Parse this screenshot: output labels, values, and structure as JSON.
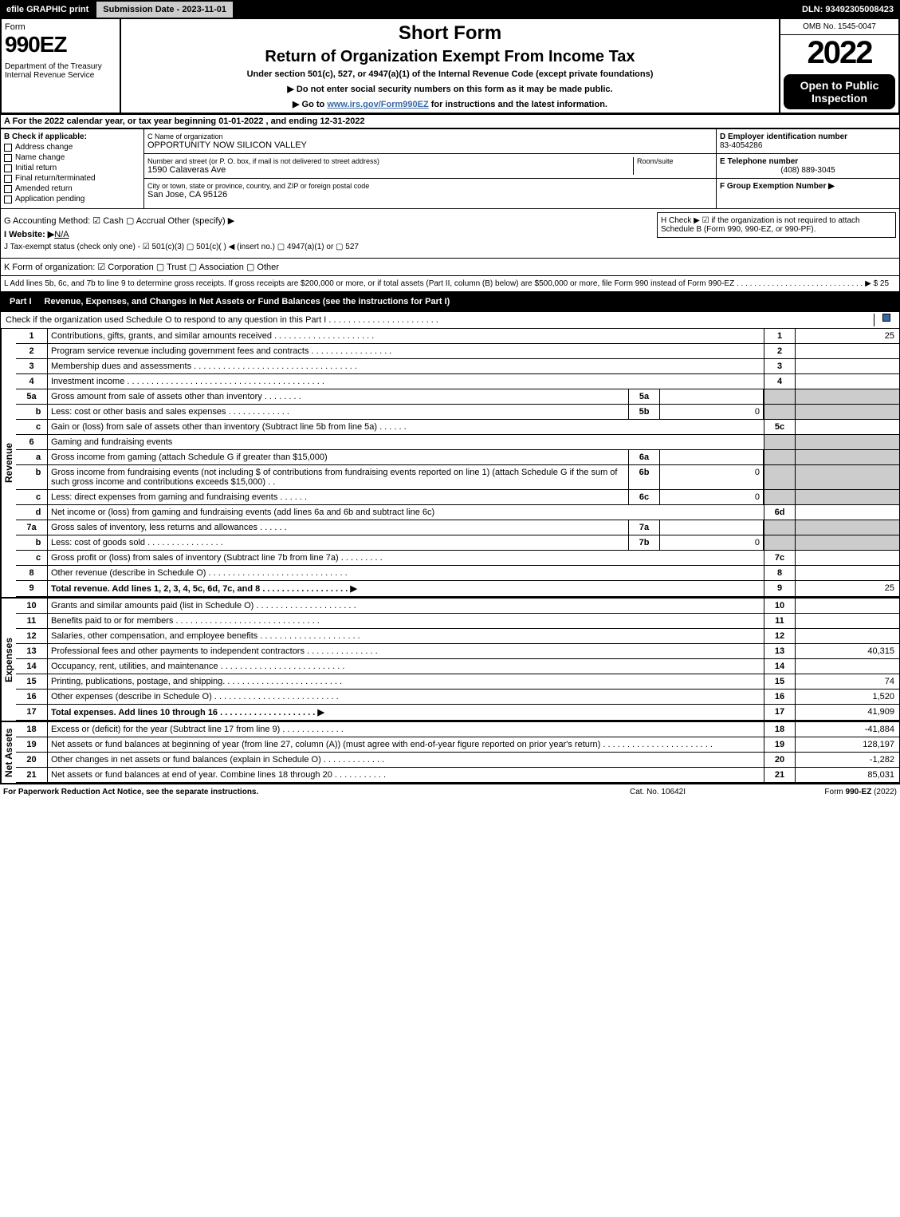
{
  "topbar": {
    "efile": "efile GRAPHIC print",
    "subdate": "Submission Date - 2023-11-01",
    "dln": "DLN: 93492305008423"
  },
  "header": {
    "form_label": "Form",
    "form_num": "990EZ",
    "dept": "Department of the Treasury\nInternal Revenue Service",
    "short_form": "Short Form",
    "return_title": "Return of Organization Exempt From Income Tax",
    "under": "Under section 501(c), 527, or 4947(a)(1) of the Internal Revenue Code (except private foundations)",
    "inst1": "▶ Do not enter social security numbers on this form as it may be made public.",
    "inst2_a": "▶ Go to ",
    "inst2_link": "www.irs.gov/Form990EZ",
    "inst2_b": " for instructions and the latest information.",
    "omb": "OMB No. 1545-0047",
    "year": "2022",
    "open": "Open to Public Inspection"
  },
  "section_a": "A  For the 2022 calendar year, or tax year beginning 01-01-2022  , and ending 12-31-2022",
  "col_b": {
    "hdr": "B  Check if applicable:",
    "items": [
      "Address change",
      "Name change",
      "Initial return",
      "Final return/terminated",
      "Amended return",
      "Application pending"
    ]
  },
  "col_c": {
    "name_lbl": "C Name of organization",
    "name": "OPPORTUNITY NOW SILICON VALLEY",
    "addr_lbl": "Number and street (or P. O. box, if mail is not delivered to street address)",
    "addr": "1590 Calaveras Ave",
    "room_lbl": "Room/suite",
    "city_lbl": "City or town, state or province, country, and ZIP or foreign postal code",
    "city": "San Jose, CA  95126"
  },
  "col_d": {
    "ein_lbl": "D Employer identification number",
    "ein": "83-4054286",
    "tel_lbl": "E Telephone number",
    "tel": "(408) 889-3045",
    "grp_lbl": "F Group Exemption Number  ▶"
  },
  "lower": {
    "g": "G Accounting Method:   ☑ Cash   ▢ Accrual   Other (specify) ▶",
    "i": "I Website: ▶",
    "i_val": "N/A",
    "j": "J Tax-exempt status (check only one) -  ☑ 501(c)(3)  ▢ 501(c)(  ) ◀ (insert no.)  ▢ 4947(a)(1) or  ▢ 527",
    "h": "H  Check ▶ ☑ if the organization is not required to attach Schedule B (Form 990, 990-EZ, or 990-PF)."
  },
  "section_k": "K Form of organization:   ☑ Corporation   ▢ Trust   ▢ Association   ▢ Other",
  "section_l": "L Add lines 5b, 6c, and 7b to line 9 to determine gross receipts. If gross receipts are $200,000 or more, or if total assets (Part II, column (B) below) are $500,000 or more, file Form 990 instead of Form 990-EZ  . . . . . . . . . . . . . . . . . . . . . . . . . . . . .  ▶ $ 25",
  "part1": {
    "title": "Revenue, Expenses, and Changes in Net Assets or Fund Balances (see the instructions for Part I)",
    "check_o": "Check if the organization used Schedule O to respond to any question in this Part I . . . . . . . . . . . . . . . . . . . . . . .",
    "revenue_label": "Revenue",
    "expenses_label": "Expenses",
    "netassets_label": "Net Assets",
    "rows": [
      {
        "n": "1",
        "desc": "Contributions, gifts, grants, and similar amounts received . . . . . . . . . . . . . . . . . . . . .",
        "rn": "1",
        "rv": "25"
      },
      {
        "n": "2",
        "desc": "Program service revenue including government fees and contracts . . . . . . . . . . . . . . . . .",
        "rn": "2",
        "rv": ""
      },
      {
        "n": "3",
        "desc": "Membership dues and assessments . . . . . . . . . . . . . . . . . . . . . . . . . . . . . . . . . .",
        "rn": "3",
        "rv": ""
      },
      {
        "n": "4",
        "desc": "Investment income . . . . . . . . . . . . . . . . . . . . . . . . . . . . . . . . . . . . . . . . .",
        "rn": "4",
        "rv": ""
      },
      {
        "n": "5a",
        "desc": "Gross amount from sale of assets other than inventory . . . . . . . .",
        "mb": "5a",
        "mv": "",
        "grey": true
      },
      {
        "n": "b",
        "desc": "Less: cost or other basis and sales expenses . . . . . . . . . . . . .",
        "mb": "5b",
        "mv": "0",
        "grey": true
      },
      {
        "n": "c",
        "desc": "Gain or (loss) from sale of assets other than inventory (Subtract line 5b from line 5a) . . . . . .",
        "rn": "5c",
        "rv": ""
      },
      {
        "n": "6",
        "desc": "Gaming and fundraising events",
        "grey": true
      },
      {
        "n": "a",
        "desc": "Gross income from gaming (attach Schedule G if greater than $15,000)",
        "mb": "6a",
        "mv": "",
        "grey": true
      },
      {
        "n": "b",
        "desc": "Gross income from fundraising events (not including $                    of contributions from fundraising events reported on line 1) (attach Schedule G if the sum of such gross income and contributions exceeds $15,000)   . .",
        "mb": "6b",
        "mv": "0",
        "grey": true
      },
      {
        "n": "c",
        "desc": "Less: direct expenses from gaming and fundraising events   . . . . . .",
        "mb": "6c",
        "mv": "0",
        "grey": true
      },
      {
        "n": "d",
        "desc": "Net income or (loss) from gaming and fundraising events (add lines 6a and 6b and subtract line 6c)",
        "rn": "6d",
        "rv": ""
      },
      {
        "n": "7a",
        "desc": "Gross sales of inventory, less returns and allowances . . . . . .",
        "mb": "7a",
        "mv": "",
        "grey": true
      },
      {
        "n": "b",
        "desc": "Less: cost of goods sold         . . . . . . . . . . . . . . . .",
        "mb": "7b",
        "mv": "0",
        "grey": true
      },
      {
        "n": "c",
        "desc": "Gross profit or (loss) from sales of inventory (Subtract line 7b from line 7a) . . . . . . . . .",
        "rn": "7c",
        "rv": ""
      },
      {
        "n": "8",
        "desc": "Other revenue (describe in Schedule O) . . . . . . . . . . . . . . . . . . . . . . . . . . . . .",
        "rn": "8",
        "rv": ""
      },
      {
        "n": "9",
        "desc": "Total revenue. Add lines 1, 2, 3, 4, 5c, 6d, 7c, and 8   . . . . . . . . . . . . . . . . . .  ▶",
        "rn": "9",
        "rv": "25",
        "bold": true
      }
    ],
    "exp_rows": [
      {
        "n": "10",
        "desc": "Grants and similar amounts paid (list in Schedule O) . . . . . . . . . . . . . . . . . . . . .",
        "rn": "10",
        "rv": ""
      },
      {
        "n": "11",
        "desc": "Benefits paid to or for members    . . . . . . . . . . . . . . . . . . . . . . . . . . . . . .",
        "rn": "11",
        "rv": ""
      },
      {
        "n": "12",
        "desc": "Salaries, other compensation, and employee benefits . . . . . . . . . . . . . . . . . . . . .",
        "rn": "12",
        "rv": ""
      },
      {
        "n": "13",
        "desc": "Professional fees and other payments to independent contractors . . . . . . . . . . . . . . .",
        "rn": "13",
        "rv": "40,315"
      },
      {
        "n": "14",
        "desc": "Occupancy, rent, utilities, and maintenance . . . . . . . . . . . . . . . . . . . . . . . . . .",
        "rn": "14",
        "rv": ""
      },
      {
        "n": "15",
        "desc": "Printing, publications, postage, and shipping. . . . . . . . . . . . . . . . . . . . . . . . .",
        "rn": "15",
        "rv": "74"
      },
      {
        "n": "16",
        "desc": "Other expenses (describe in Schedule O)   . . . . . . . . . . . . . . . . . . . . . . . . . .",
        "rn": "16",
        "rv": "1,520"
      },
      {
        "n": "17",
        "desc": "Total expenses. Add lines 10 through 16     . . . . . . . . . . . . . . . . . . . .  ▶",
        "rn": "17",
        "rv": "41,909",
        "bold": true
      }
    ],
    "net_rows": [
      {
        "n": "18",
        "desc": "Excess or (deficit) for the year (Subtract line 17 from line 9)       . . . . . . . . . . . . .",
        "rn": "18",
        "rv": "-41,884"
      },
      {
        "n": "19",
        "desc": "Net assets or fund balances at beginning of year (from line 27, column (A)) (must agree with end-of-year figure reported on prior year's return) . . . . . . . . . . . . . . . . . . . . . . .",
        "rn": "19",
        "rv": "128,197"
      },
      {
        "n": "20",
        "desc": "Other changes in net assets or fund balances (explain in Schedule O) . . . . . . . . . . . . .",
        "rn": "20",
        "rv": "-1,282"
      },
      {
        "n": "21",
        "desc": "Net assets or fund balances at end of year. Combine lines 18 through 20 . . . . . . . . . . .",
        "rn": "21",
        "rv": "85,031"
      }
    ]
  },
  "footer": {
    "left": "For Paperwork Reduction Act Notice, see the separate instructions.",
    "mid": "Cat. No. 10642I",
    "right": "Form 990-EZ (2022)"
  }
}
